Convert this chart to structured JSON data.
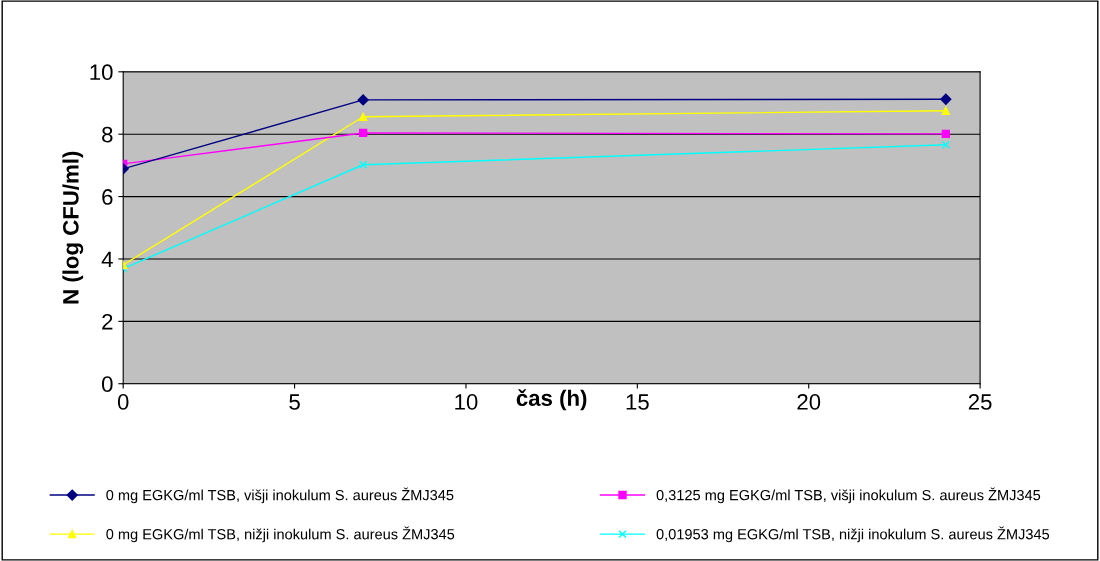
{
  "chart_data": {
    "type": "line",
    "xlabel": "čas (h)",
    "ylabel": "N (log CFU/ml)",
    "x": [
      0,
      7,
      24
    ],
    "series": [
      {
        "name": "0 mg EGKG/ml TSB, višji inokulum S. aureus ŽMJ345",
        "color": "#000080",
        "marker": "diamond",
        "values": [
          6.89,
          9.1,
          9.12
        ]
      },
      {
        "name": "0,3125 mg EGKG/ml TSB, višji inokulum S. aureus ŽMJ345",
        "color": "#ff00ff",
        "marker": "square",
        "values": [
          7.05,
          8.04,
          8.01
        ]
      },
      {
        "name": "0 mg EGKG/ml TSB, nižji inokulum S. aureus ŽMJ345",
        "color": "#ffff00",
        "marker": "triangle",
        "values": [
          3.81,
          8.56,
          8.75
        ]
      },
      {
        "name": "0,01953 mg EGKG/ml TSB, nižji inokulum S. aureus ŽMJ345",
        "color": "#00ffff",
        "marker": "cross",
        "values": [
          3.69,
          7.02,
          7.66
        ]
      }
    ],
    "xlim": [
      0,
      25
    ],
    "xticks": [
      0,
      5,
      10,
      15,
      20,
      25
    ],
    "ylim": [
      0,
      10
    ],
    "yticks": [
      0,
      2,
      4,
      6,
      8,
      10
    ],
    "grid": "y",
    "legend": "bottom",
    "line_style": "solid"
  }
}
